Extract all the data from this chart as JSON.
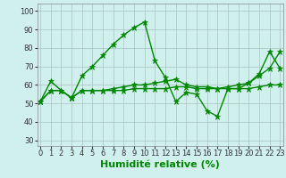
{
  "line1": [
    51,
    62,
    57,
    53,
    65,
    70,
    76,
    82,
    87,
    91,
    94,
    73,
    64,
    51,
    56,
    55,
    46,
    43,
    58,
    58,
    61,
    66,
    78,
    69
  ],
  "line2": [
    51,
    57,
    57,
    53,
    57,
    57,
    57,
    58,
    59,
    60,
    60,
    61,
    62,
    63,
    60,
    59,
    59,
    58,
    59,
    60,
    61,
    65,
    69,
    78
  ],
  "line3": [
    51,
    57,
    57,
    53,
    57,
    57,
    57,
    57,
    57,
    58,
    58,
    58,
    58,
    59,
    59,
    58,
    58,
    58,
    58,
    58,
    58,
    59,
    60,
    60
  ],
  "x": [
    0,
    1,
    2,
    3,
    4,
    5,
    6,
    7,
    8,
    9,
    10,
    11,
    12,
    13,
    14,
    15,
    16,
    17,
    18,
    19,
    20,
    21,
    22,
    23
  ],
  "line_color": "#008800",
  "bg_color": "#d0f0ee",
  "grid_color": "#b0c8c8",
  "xlabel": "Humidité relative (%)",
  "xlabel_color": "#008800",
  "xlabel_fontsize": 8,
  "ylabel_ticks": [
    30,
    40,
    50,
    60,
    70,
    80,
    90,
    100
  ],
  "ylim": [
    27,
    104
  ],
  "xlim": [
    -0.3,
    23.3
  ],
  "tick_fontsize": 6,
  "linewidth": 1.0,
  "markersize": 3
}
